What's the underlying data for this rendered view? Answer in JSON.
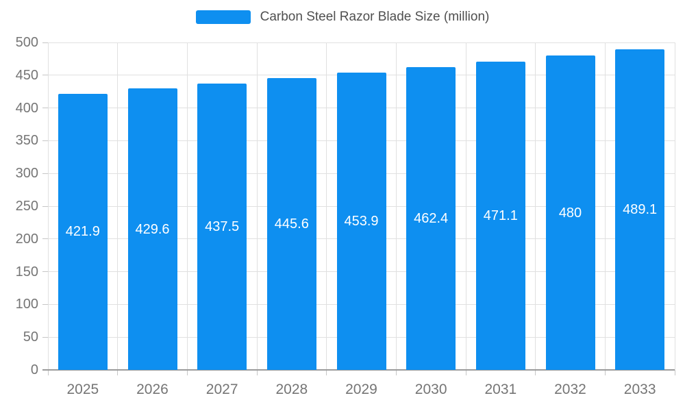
{
  "legend": {
    "label": "Carbon Steel Razor Blade Size (million)"
  },
  "colors": {
    "bar": "#0e8ff0",
    "grid": "#e0e0e0",
    "tick": "#c6c6c6",
    "axis_line": "#9a9a9a",
    "axis_text": "#757575",
    "legend_text": "#4f4f4f",
    "value_text": "#ffffff",
    "background": "#ffffff"
  },
  "chart_data": {
    "type": "bar",
    "title": "Carbon Steel Razor Blade Size (million)",
    "categories": [
      "2025",
      "2026",
      "2027",
      "2028",
      "2029",
      "2030",
      "2031",
      "2032",
      "2033"
    ],
    "values": [
      421.9,
      429.6,
      437.5,
      445.6,
      453.9,
      462.4,
      471.1,
      480,
      489.1
    ],
    "value_labels": [
      "421.9",
      "429.6",
      "437.5",
      "445.6",
      "453.9",
      "462.4",
      "471.1",
      "480",
      "489.1"
    ],
    "xlabel": "",
    "ylabel": "",
    "ylim": [
      0,
      500
    ],
    "ytick_step": 50,
    "yticks": [
      "0",
      "50",
      "100",
      "150",
      "200",
      "250",
      "300",
      "350",
      "400",
      "450",
      "500"
    ],
    "grid": true,
    "legend_position": "top",
    "value_label_position": "center-of-bar"
  }
}
